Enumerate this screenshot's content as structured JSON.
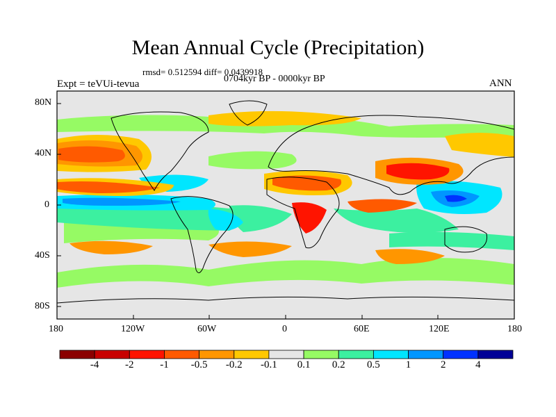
{
  "title": "Mean Annual Cycle (Precipitation)",
  "stats": "rmsd= 0.512594 diff= 0.0439918",
  "period": "0704kyr BP - 0000kyr BP",
  "experiment": "Expt = teVUi-tevua",
  "season": "ANN",
  "lat_labels": [
    "80N",
    "40N",
    "0",
    "40S",
    "80S"
  ],
  "lon_labels": [
    "180",
    "120W",
    "60W",
    "0",
    "60E",
    "120E",
    "180"
  ],
  "colorbar": {
    "colors": [
      "#8b0000",
      "#c80000",
      "#ff1400",
      "#ff5a00",
      "#ff9600",
      "#ffc800",
      "#e6e6e6",
      "#96fa64",
      "#3cf0a0",
      "#00e6ff",
      "#0096ff",
      "#0032ff",
      "#000096"
    ],
    "labels": [
      "-4",
      "-2",
      "-1",
      "-0.5",
      "-0.2",
      "-0.1",
      "0.1",
      "0.2",
      "0.5",
      "1",
      "2",
      "4"
    ]
  },
  "icons": {
    "continents": "coastline-outline"
  }
}
